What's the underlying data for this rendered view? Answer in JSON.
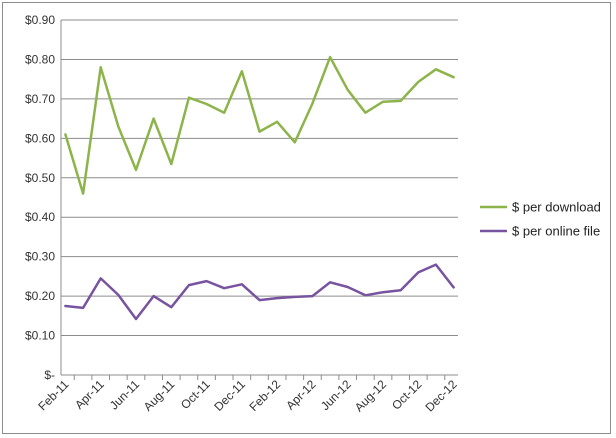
{
  "chart_data": {
    "type": "line",
    "title": "",
    "xlabel": "",
    "ylabel": "",
    "ylim": [
      0,
      0.9
    ],
    "y_ticks": [
      0,
      0.1,
      0.2,
      0.3,
      0.4,
      0.5,
      0.6,
      0.7,
      0.8,
      0.9
    ],
    "y_tick_labels": [
      "$-",
      "$0.10",
      "$0.20",
      "$0.30",
      "$0.40",
      "$0.50",
      "$0.60",
      "$0.70",
      "$0.80",
      "$0.90"
    ],
    "x": [
      "Feb-11",
      "Mar-11",
      "Apr-11",
      "May-11",
      "Jun-11",
      "Jul-11",
      "Aug-11",
      "Sep-11",
      "Oct-11",
      "Nov-11",
      "Dec-11",
      "Jan-12",
      "Feb-12",
      "Mar-12",
      "Apr-12",
      "May-12",
      "Jun-12",
      "Jul-12",
      "Aug-12",
      "Sep-12",
      "Oct-12",
      "Nov-12",
      "Dec-12"
    ],
    "x_tick_labels": [
      "Feb-11",
      "",
      "Apr-11",
      "",
      "Jun-11",
      "",
      "Aug-11",
      "",
      "Oct-11",
      "",
      "Dec-11",
      "",
      "Feb-12",
      "",
      "Apr-12",
      "",
      "Jun-12",
      "",
      "Aug-12",
      "",
      "Oct-12",
      "",
      "Dec-12"
    ],
    "grid": true,
    "legend_position": "right",
    "series": [
      {
        "name": "$ per download",
        "color": "#8db44b",
        "values": [
          0.61,
          0.46,
          0.78,
          0.63,
          0.52,
          0.65,
          0.535,
          0.703,
          0.687,
          0.665,
          0.77,
          0.617,
          0.642,
          0.59,
          0.688,
          0.806,
          0.723,
          0.665,
          0.693,
          0.695,
          0.743,
          0.775,
          0.755
        ]
      },
      {
        "name": "$ per online file",
        "color": "#7753a0",
        "values": [
          0.175,
          0.17,
          0.245,
          0.203,
          0.142,
          0.2,
          0.172,
          0.228,
          0.238,
          0.22,
          0.23,
          0.19,
          0.195,
          0.198,
          0.2,
          0.235,
          0.223,
          0.202,
          0.21,
          0.215,
          0.26,
          0.28,
          0.222
        ]
      }
    ]
  }
}
